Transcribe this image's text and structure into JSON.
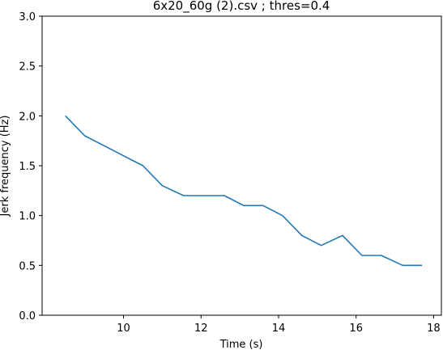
{
  "chart_data": {
    "type": "line",
    "title": "6x20_60g (2).csv ; thres=0.4",
    "xlabel": "Time (s)",
    "ylabel": "Jerk frequency (Hz)",
    "xlim": [
      7.9,
      18.2
    ],
    "ylim": [
      0.0,
      3.0
    ],
    "x_ticks": [
      10,
      12,
      14,
      16,
      18
    ],
    "x_tick_labels": [
      "10",
      "12",
      "14",
      "16",
      "18"
    ],
    "y_ticks": [
      0.0,
      0.5,
      1.0,
      1.5,
      2.0,
      2.5,
      3.0
    ],
    "y_tick_labels": [
      "0.0",
      "0.5",
      "1.0",
      "1.5",
      "2.0",
      "2.5",
      "3.0"
    ],
    "grid": false,
    "series": [
      {
        "color": "#1f77b4",
        "x": [
          8.5,
          9.0,
          9.5,
          10.0,
          10.5,
          11.0,
          11.55,
          12.05,
          12.6,
          13.1,
          13.6,
          14.1,
          14.6,
          15.1,
          15.65,
          16.15,
          16.65,
          17.2,
          17.7
        ],
        "y": [
          2.0,
          1.8,
          1.7,
          1.6,
          1.5,
          1.3,
          1.2,
          1.2,
          1.2,
          1.1,
          1.1,
          1.0,
          0.8,
          0.7,
          0.8,
          0.6,
          0.6,
          0.5,
          0.5
        ]
      }
    ]
  }
}
